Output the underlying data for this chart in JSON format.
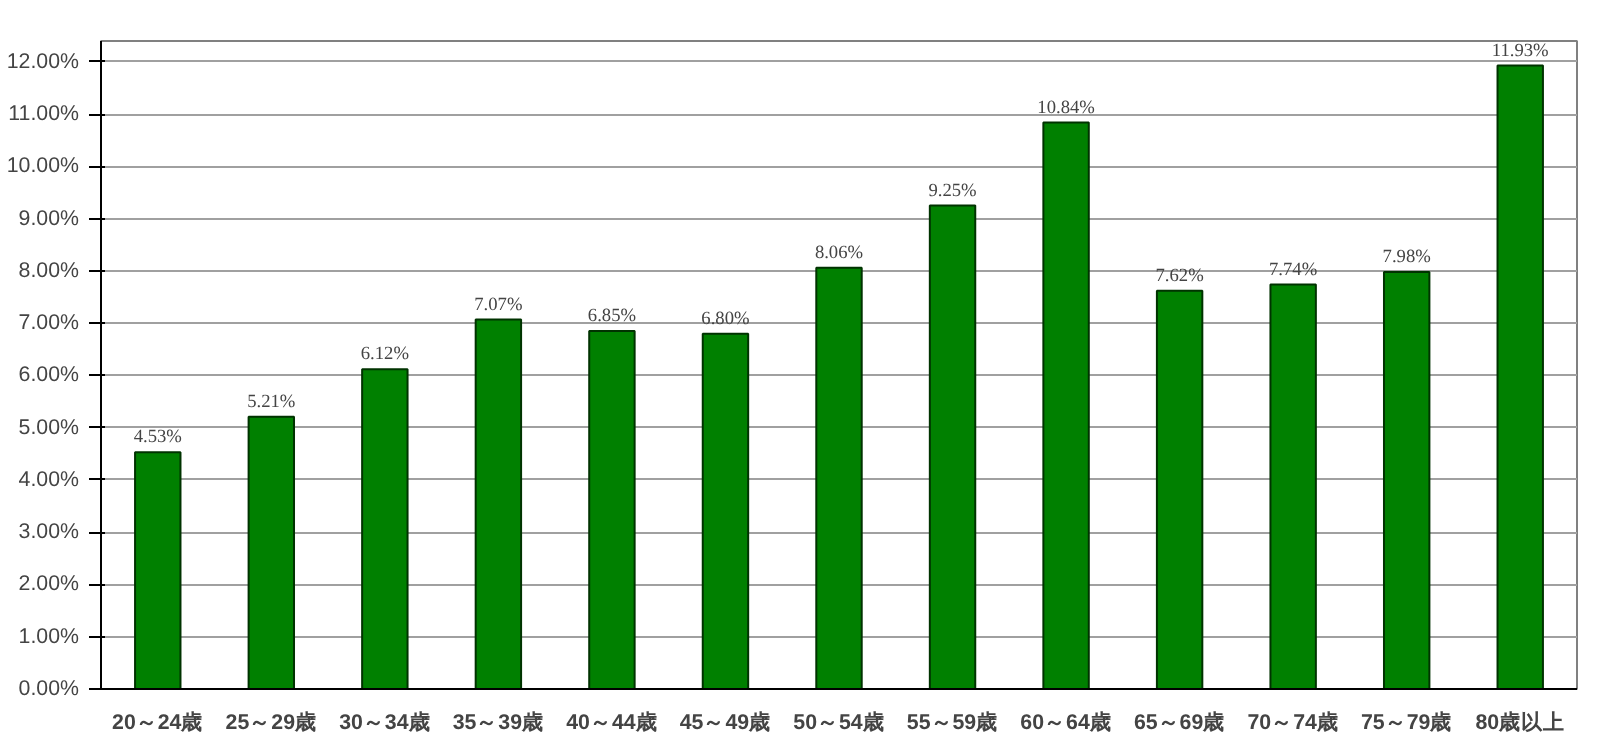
{
  "chart_data": {
    "type": "bar",
    "categories": [
      "20～24歳",
      "25～29歳",
      "30～34歳",
      "35～39歳",
      "40～44歳",
      "45～49歳",
      "50～54歳",
      "55～59歳",
      "60～64歳",
      "65～69歳",
      "70～74歳",
      "75～79歳",
      "80歳以上"
    ],
    "values": [
      4.53,
      5.21,
      6.12,
      7.07,
      6.85,
      6.8,
      8.06,
      9.25,
      10.84,
      7.62,
      7.74,
      7.98,
      11.93
    ],
    "value_labels": [
      "4.53%",
      "5.21%",
      "6.12%",
      "7.07%",
      "6.85%",
      "6.80%",
      "8.06%",
      "9.25%",
      "10.84%",
      "7.62%",
      "7.74%",
      "7.98%",
      "11.93%"
    ],
    "color": "#008000",
    "ylim": [
      0,
      12.4
    ],
    "yticks": [
      {
        "value": 0,
        "label": "0.00%"
      },
      {
        "value": 1,
        "label": "1.00%"
      },
      {
        "value": 2,
        "label": "2.00%"
      },
      {
        "value": 3,
        "label": "3.00%"
      },
      {
        "value": 4,
        "label": "4.00%"
      },
      {
        "value": 5,
        "label": "5.00%"
      },
      {
        "value": 6,
        "label": "6.00%"
      },
      {
        "value": 7,
        "label": "7.00%"
      },
      {
        "value": 8,
        "label": "8.00%"
      },
      {
        "value": 9,
        "label": "9.00%"
      },
      {
        "value": 10,
        "label": "10.00%"
      },
      {
        "value": 11,
        "label": "11.00%"
      },
      {
        "value": 12,
        "label": "12.00%"
      }
    ],
    "grid": "y"
  }
}
